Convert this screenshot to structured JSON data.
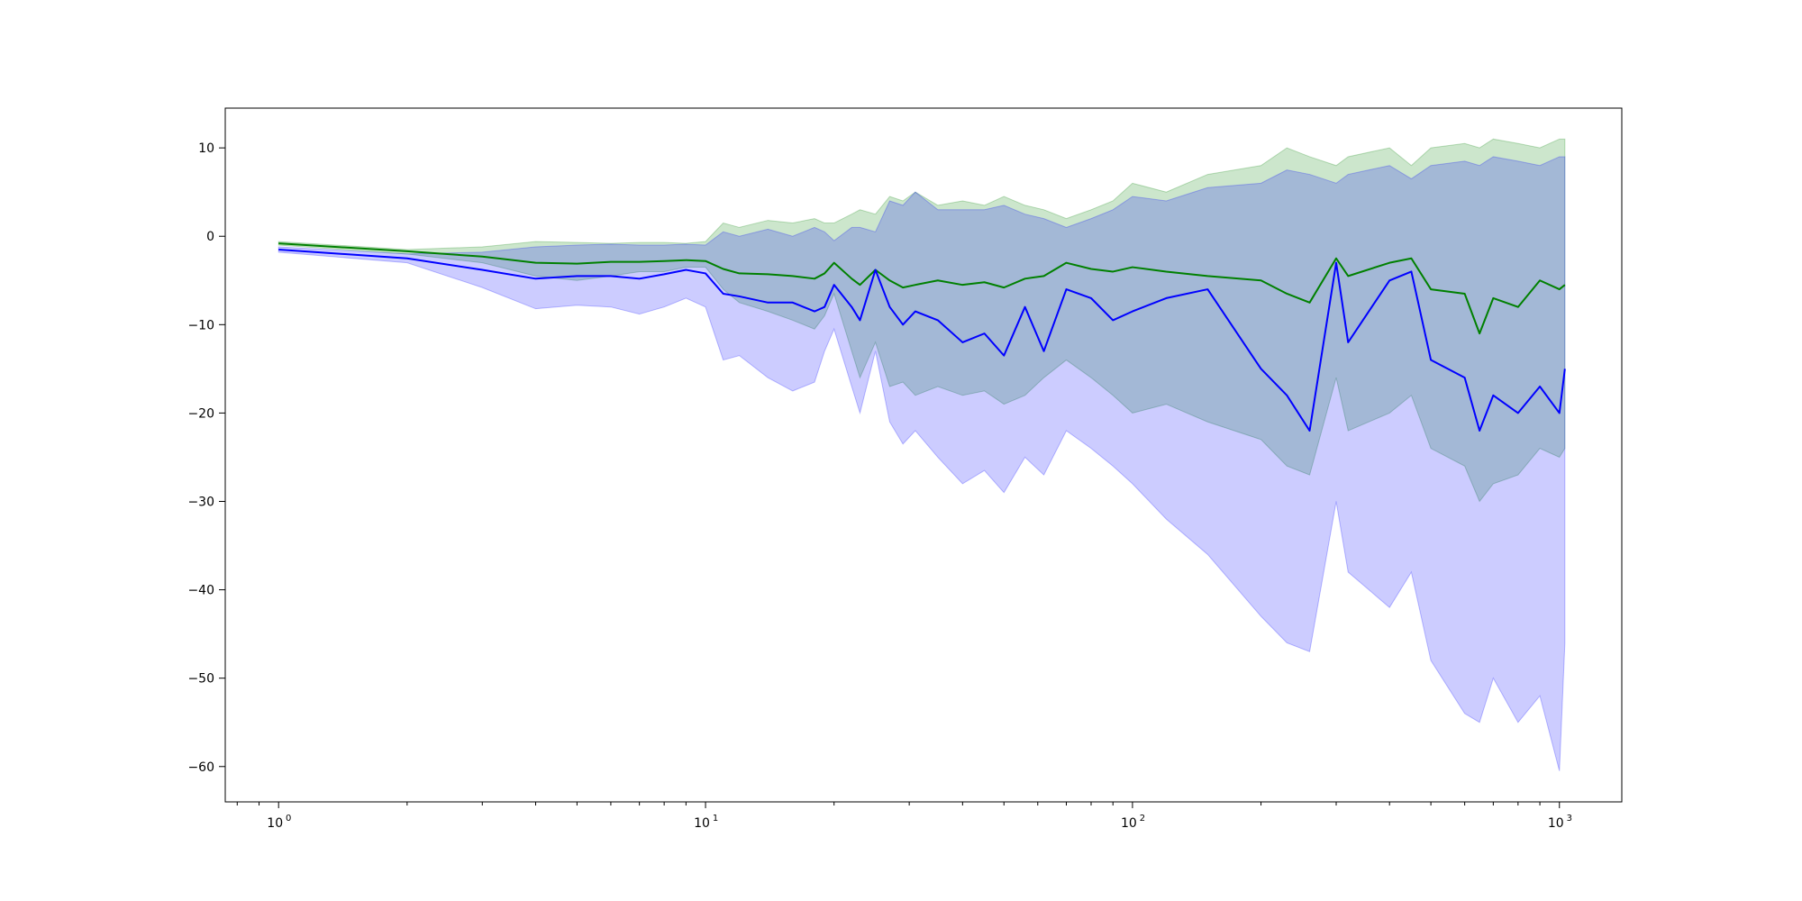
{
  "chart_data": {
    "type": "line",
    "title": "",
    "xlabel": "",
    "ylabel": "",
    "xscale": "log",
    "xlim": [
      0.75,
      1400
    ],
    "ylim": [
      -64,
      14.5
    ],
    "grid": false,
    "legend": "none",
    "x_ticks": [
      {
        "value": 1,
        "base": "10",
        "exp": "0"
      },
      {
        "value": 10,
        "base": "10",
        "exp": "1"
      },
      {
        "value": 100,
        "base": "10",
        "exp": "2"
      },
      {
        "value": 1000,
        "base": "10",
        "exp": "3"
      }
    ],
    "y_ticks": [
      {
        "value": 10,
        "label": "10"
      },
      {
        "value": 0,
        "label": "0"
      },
      {
        "value": -10,
        "label": "−10"
      },
      {
        "value": -20,
        "label": "−20"
      },
      {
        "value": -30,
        "label": "−30"
      },
      {
        "value": -40,
        "label": "−40"
      },
      {
        "value": -50,
        "label": "−50"
      },
      {
        "value": -60,
        "label": "−60"
      }
    ],
    "colors": {
      "green_line": "#008000",
      "green_band": "#008000",
      "blue_line": "#0000ff",
      "blue_band": "#0000ff"
    },
    "band_opacity": 0.2,
    "series": [
      {
        "color": "green",
        "x": [
          1,
          2,
          3,
          4,
          5,
          6,
          7,
          8,
          9,
          10,
          11,
          12,
          14,
          16,
          18,
          19,
          20,
          22,
          23,
          25,
          27,
          29,
          31,
          35,
          40,
          45,
          50,
          56,
          62,
          70,
          80,
          90,
          100,
          120,
          150,
          200,
          230,
          260,
          300,
          320,
          400,
          450,
          500,
          600,
          650,
          700,
          800,
          900,
          1000,
          1030
        ],
        "y": [
          -0.8,
          -1.7,
          -2.3,
          -3.0,
          -3.1,
          -2.9,
          -2.9,
          -2.8,
          -2.7,
          -2.8,
          -3.7,
          -4.2,
          -4.3,
          -4.5,
          -4.8,
          -4.2,
          -3.0,
          -4.8,
          -5.5,
          -3.8,
          -5.0,
          -5.8,
          -5.5,
          -5.0,
          -5.5,
          -5.2,
          -5.8,
          -4.8,
          -4.5,
          -3.0,
          -3.7,
          -4.0,
          -3.5,
          -4.0,
          -4.5,
          -5.0,
          -6.5,
          -7.5,
          -2.5,
          -4.5,
          -3.0,
          -2.5,
          -6.0,
          -6.5,
          -11.0,
          -7.0,
          -8.0,
          -5.0,
          -6.0,
          -5.5
        ],
        "upper": [
          -0.6,
          -1.5,
          -1.2,
          -0.6,
          -0.7,
          -0.8,
          -0.7,
          -0.7,
          -0.8,
          -0.6,
          1.5,
          1.0,
          1.8,
          1.5,
          2.0,
          1.5,
          1.5,
          2.5,
          3.0,
          2.5,
          4.5,
          4.0,
          5.0,
          3.5,
          4.0,
          3.5,
          4.5,
          3.5,
          3.0,
          2.0,
          3.0,
          4.0,
          6.0,
          5.0,
          7.0,
          8.0,
          10.0,
          9.0,
          8.0,
          9.0,
          10.0,
          8.0,
          10.0,
          10.5,
          10.0,
          11.0,
          10.5,
          10.0,
          11.0,
          11.0
        ],
        "lower": [
          -1.0,
          -2.0,
          -3.0,
          -4.5,
          -5.0,
          -4.5,
          -4.0,
          -4.0,
          -3.5,
          -3.5,
          -6.0,
          -7.5,
          -8.5,
          -9.5,
          -10.5,
          -9.0,
          -6.5,
          -13.0,
          -16.0,
          -12.0,
          -17.0,
          -16.5,
          -18.0,
          -17.0,
          -18.0,
          -17.5,
          -19.0,
          -18.0,
          -16.0,
          -14.0,
          -16.0,
          -18.0,
          -20.0,
          -19.0,
          -21.0,
          -23.0,
          -26.0,
          -27.0,
          -16.0,
          -22.0,
          -20.0,
          -18.0,
          -24.0,
          -26.0,
          -30.0,
          -28.0,
          -27.0,
          -24.0,
          -25.0,
          -24.0
        ]
      },
      {
        "color": "blue",
        "x": [
          1,
          2,
          3,
          4,
          5,
          6,
          7,
          8,
          9,
          10,
          11,
          12,
          14,
          16,
          18,
          19,
          20,
          22,
          23,
          25,
          27,
          29,
          31,
          35,
          40,
          45,
          50,
          56,
          62,
          70,
          80,
          90,
          100,
          120,
          150,
          200,
          230,
          260,
          300,
          320,
          400,
          450,
          500,
          600,
          650,
          700,
          800,
          900,
          1000,
          1030
        ],
        "y": [
          -1.5,
          -2.5,
          -3.8,
          -4.8,
          -4.5,
          -4.5,
          -4.8,
          -4.3,
          -3.8,
          -4.2,
          -6.5,
          -6.8,
          -7.5,
          -7.5,
          -8.5,
          -8.0,
          -5.5,
          -8.0,
          -9.5,
          -3.8,
          -8.0,
          -10.0,
          -8.5,
          -9.5,
          -12.0,
          -11.0,
          -13.5,
          -8.0,
          -13.0,
          -6.0,
          -7.0,
          -9.5,
          -8.5,
          -7.0,
          -6.0,
          -15.0,
          -18.0,
          -22.0,
          -3.0,
          -12.0,
          -5.0,
          -4.0,
          -14.0,
          -16.0,
          -22.0,
          -18.0,
          -20.0,
          -17.0,
          -20.0,
          -15.0
        ],
        "upper": [
          -1.2,
          -2.0,
          -1.8,
          -1.2,
          -1.0,
          -0.9,
          -1.0,
          -1.0,
          -0.9,
          -1.0,
          0.5,
          0.0,
          0.8,
          0.0,
          1.0,
          0.5,
          -0.5,
          1.0,
          1.0,
          0.5,
          4.0,
          3.5,
          5.0,
          3.0,
          3.0,
          3.0,
          3.5,
          2.5,
          2.0,
          1.0,
          2.0,
          3.0,
          4.5,
          4.0,
          5.5,
          6.0,
          7.5,
          7.0,
          6.0,
          7.0,
          8.0,
          6.5,
          8.0,
          8.5,
          8.0,
          9.0,
          8.5,
          8.0,
          9.0,
          9.0
        ],
        "lower": [
          -1.8,
          -3.0,
          -5.8,
          -8.2,
          -7.8,
          -8.0,
          -8.8,
          -8.0,
          -7.0,
          -8.0,
          -14.0,
          -13.5,
          -16.0,
          -17.5,
          -16.5,
          -13.0,
          -10.5,
          -17.0,
          -20.0,
          -13.0,
          -21.0,
          -23.5,
          -22.0,
          -25.0,
          -28.0,
          -26.5,
          -29.0,
          -25.0,
          -27.0,
          -22.0,
          -24.0,
          -26.0,
          -28.0,
          -32.0,
          -36.0,
          -43.0,
          -46.0,
          -47.0,
          -30.0,
          -38.0,
          -42.0,
          -38.0,
          -48.0,
          -54.0,
          -55.0,
          -50.0,
          -55.0,
          -52.0,
          -60.5,
          -46.0
        ]
      }
    ]
  }
}
